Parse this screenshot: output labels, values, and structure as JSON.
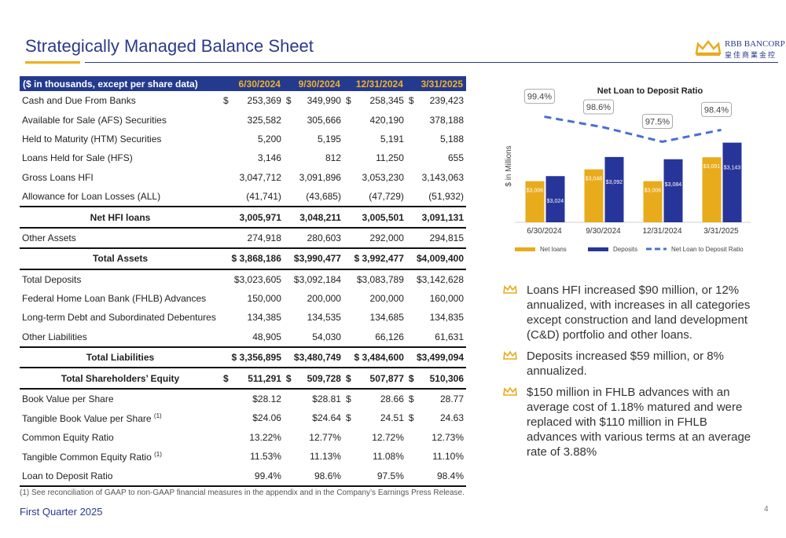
{
  "header": {
    "title": "Strategically Managed Balance Sheet",
    "logo_name": "RBB BANCORP",
    "logo_subtitle": "皇佳商業金控"
  },
  "table": {
    "header": [
      "($ in thousands, except per share data)",
      "6/30/2024",
      "9/30/2024",
      "12/31/2024",
      "3/31/2025"
    ],
    "rows": [
      {
        "label": "Cash and Due From Banks",
        "cells": [
          {
            "sign": "$",
            "value": "253,369"
          },
          {
            "sign": "$",
            "value": "349,990"
          },
          {
            "sign": "$",
            "value": "258,345"
          },
          {
            "sign": "$",
            "value": "239,423"
          }
        ]
      },
      {
        "label": "Available for Sale (AFS) Securities",
        "cells": [
          "325,582",
          "305,666",
          "420,190",
          "378,188"
        ]
      },
      {
        "label": "Held to Maturity (HTM) Securities",
        "cells": [
          "5,200",
          "5,195",
          "5,191",
          "5,188"
        ]
      },
      {
        "label": "Loans Held for Sale (HFS)",
        "cells": [
          "3,146",
          "812",
          "11,250",
          "655"
        ]
      },
      {
        "label": "Gross Loans HFI",
        "cells": [
          "3,047,712",
          "3,091,896",
          "3,053,230",
          "3,143,063"
        ]
      },
      {
        "label": "Allowance for Loan Losses (ALL)",
        "cells": [
          "(41,741)",
          "(43,685)",
          "(47,729)",
          "(51,932)"
        ]
      },
      {
        "label": "Net HFI loans",
        "bold": true,
        "cells": [
          "3,005,971",
          "3,048,211",
          "3,005,501",
          "3,091,131"
        ]
      },
      {
        "label": "Other Assets",
        "cells": [
          "274,918",
          "280,603",
          "292,000",
          "294,815"
        ]
      },
      {
        "label": "Total Assets",
        "bold": true,
        "cells": [
          "$ 3,868,186",
          "$3,990,477",
          "$ 3,992,477",
          "$4,009,400"
        ]
      },
      {
        "label": "Total Deposits",
        "cells": [
          "$3,023,605",
          "$3,092,184",
          "$3,083,789",
          "$3,142,628"
        ]
      },
      {
        "label": "Federal Home Loan Bank (FHLB) Advances",
        "cells": [
          "150,000",
          "200,000",
          "200,000",
          "160,000"
        ]
      },
      {
        "label": "Long-term Debt and Subordinated Debentures",
        "cells": [
          "134,385",
          "134,535",
          "134,685",
          "134,835"
        ]
      },
      {
        "label": "Other Liabilities",
        "cells": [
          "48,905",
          "54,030",
          "66,126",
          "61,631"
        ]
      },
      {
        "label": "Total Liabilities",
        "bold": true,
        "cells": [
          "$ 3,356,895",
          "$3,480,749",
          "$ 3,484,600",
          "$3,499,094"
        ]
      },
      {
        "label": "Total Shareholders’ Equity",
        "bold": true,
        "cells": [
          {
            "sign": "$",
            "value": "511,291"
          },
          {
            "sign": "$",
            "value": "509,728"
          },
          {
            "sign": "$",
            "value": "507,877"
          },
          {
            "sign": "$",
            "value": "510,306"
          }
        ]
      },
      {
        "label": "Book Value per Share",
        "cells": [
          "$28.12",
          "$28.81",
          {
            "sign": "$",
            "value": "28.66"
          },
          {
            "sign": "$",
            "value": "28.77"
          }
        ]
      },
      {
        "label": "Tangible Book Value per Share",
        "note": "(1)",
        "cells": [
          "$24.06",
          "$24.64",
          {
            "sign": "$",
            "value": "24.51"
          },
          {
            "sign": "$",
            "value": "24.63"
          }
        ]
      },
      {
        "label": "Common Equity Ratio",
        "cells": [
          "13.22%",
          "12.77%",
          "12.72%",
          "12.73%"
        ]
      },
      {
        "label": "Tangible Common Equity Ratio",
        "note": "(1)",
        "cells": [
          "11.53%",
          "11.13%",
          "11.08%",
          "11.10%"
        ]
      },
      {
        "label": "Loan to Deposit Ratio",
        "cells": [
          "99.4%",
          "98.6%",
          "97.5%",
          "98.4%"
        ]
      }
    ]
  },
  "chart_data": {
    "type": "bar",
    "title": "Net Loan to Deposit  Ratio",
    "y_label": "$ in Millions",
    "categories": [
      "6/30/2024",
      "9/30/2024",
      "12/31/2024",
      "3/31/2025"
    ],
    "ylim": [
      2860,
      3315
    ],
    "y2lim": [
      91.4,
      101.1
    ],
    "series": [
      {
        "name": "Net loans",
        "color": "#e8ab1c",
        "values": [
          3006,
          3048,
          3006,
          3091
        ],
        "value_labels": [
          "$3,006",
          "$3,048",
          "$3,006",
          "$3,091"
        ]
      },
      {
        "name": "Deposits",
        "color": "#27359a",
        "values": [
          3024,
          3092,
          3084,
          3143
        ],
        "value_labels": [
          "$3,024",
          "$3,092",
          "$3,084",
          "$3,143"
        ]
      },
      {
        "name": "Net Loan to Deposit Ratio",
        "type": "line",
        "axis": "y2",
        "color": "#4a6fd0",
        "values": [
          99.4,
          98.6,
          97.5,
          98.4
        ],
        "value_labels": [
          "99.4%",
          "98.6%",
          "97.5%",
          "98.4%"
        ]
      }
    ]
  },
  "bullets": [
    "Loans HFI increased $90 million, or 12% annualized, with increases in all categories except construction and land development (C&D) portfolio and other loans.",
    "Deposits increased $59 million, or 8% annualized.",
    "$150 million in FHLB advances with an average cost of 1.18% matured and were replaced with $110 million in FHLB advances with various terms at an average rate of 3.88%"
  ],
  "footnote": "(1) See reconciliation of GAAP to non-GAAP financial measures in the appendix and in the Company’s Earnings Press Release.",
  "footer": "First Quarter 2025",
  "page_number": "4"
}
